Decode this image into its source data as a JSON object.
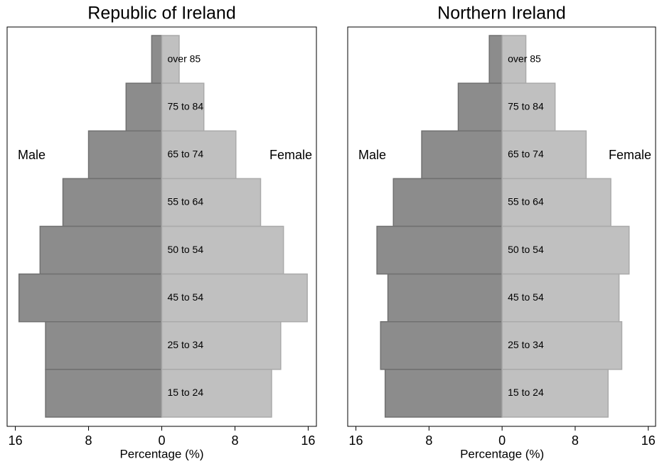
{
  "chart_data": [
    {
      "type": "pyramid",
      "title": "Republic of Ireland",
      "x_label": "Percentage (%)",
      "categories": [
        "over 85",
        "75 to 84",
        "65 to 74",
        "55 to 64",
        "50 to 54",
        "45 to 54",
        "25 to 34",
        "15 to 24"
      ],
      "series": [
        {
          "name": "Male",
          "color": "#8c8c8c",
          "values": [
            -1.1,
            -3.9,
            -8.0,
            -10.8,
            -13.3,
            -15.6,
            -12.7,
            -12.7
          ]
        },
        {
          "name": "Female",
          "color": "#c0c0c0",
          "values": [
            1.9,
            4.6,
            8.1,
            10.8,
            13.3,
            15.9,
            13.0,
            12.0
          ]
        }
      ],
      "xlim": [
        -16.9,
        16.9
      ],
      "xticks": [
        {
          "value": -16,
          "label": "16"
        },
        {
          "value": -8,
          "label": "8"
        },
        0,
        8,
        16
      ]
    },
    {
      "type": "pyramid",
      "title": "Northern Ireland",
      "x_label": "Percentage (%)",
      "categories": [
        "over 85",
        "75 to 84",
        "65 to 74",
        "55 to 64",
        "50 to 54",
        "45 to 54",
        "25 to 34",
        "15 to 24"
      ],
      "series": [
        {
          "name": "Male",
          "color": "#8c8c8c",
          "values": [
            -1.4,
            -4.8,
            -8.8,
            -11.9,
            -13.7,
            -12.5,
            -13.3,
            -12.8
          ]
        },
        {
          "name": "Female",
          "color": "#c0c0c0",
          "values": [
            2.6,
            5.8,
            9.2,
            11.9,
            13.9,
            12.8,
            13.1,
            11.6
          ]
        }
      ],
      "xlim": [
        -16.9,
        16.8
      ],
      "xticks": [
        {
          "value": -16,
          "label": "16"
        },
        {
          "value": -8,
          "label": "8"
        },
        0,
        8,
        16
      ]
    }
  ]
}
